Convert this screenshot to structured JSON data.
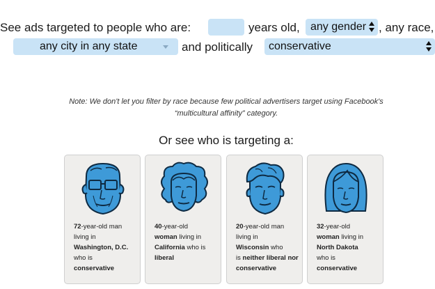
{
  "filter": {
    "intro": "See ads targeted to people who are:",
    "age_value": "",
    "years_old": "years old,",
    "gender_selected": "any gender",
    "any_race": ", any race,",
    "location_selected": "any city in any state",
    "and_politically": "and politically",
    "politics_selected": "conservative"
  },
  "note": "Note: We don't let you filter by race because few political advertisers target using Facebook's “multicultural affinity” category.",
  "subhead": "Or see who is targeting a:",
  "personas": [
    {
      "age": "72",
      "age_suffix": "-year-old man",
      "p2": "living in",
      "place": "Washington, D.C.",
      "p4": " who is",
      "politics": "conservative",
      "icon": "elderly-man-face-icon"
    },
    {
      "age": "40",
      "age_suffix": "-year-old",
      "gender": "woman",
      "p2": " living in",
      "place": "California",
      "p4": " who is",
      "politics": "liberal",
      "icon": "woman-curly-hair-face-icon"
    },
    {
      "age": "20",
      "age_suffix": "-year-old man",
      "p2": "living in",
      "place": "Wisconsin",
      "p4": " who",
      "p5": "is",
      "politics": "neither liberal nor conservative",
      "icon": "young-man-face-icon"
    },
    {
      "age": "32",
      "age_suffix": "-year-old",
      "gender": "woman",
      "p2": " living in",
      "place": "North Dakota",
      "p4": " who is",
      "politics": "conservative",
      "icon": "woman-long-hair-face-icon"
    }
  ],
  "colors": {
    "control_bg": "#c9e3f6",
    "face_blue": "#3e9ad8",
    "face_stroke": "#0e2a42",
    "card_bg": "#efeeec"
  }
}
